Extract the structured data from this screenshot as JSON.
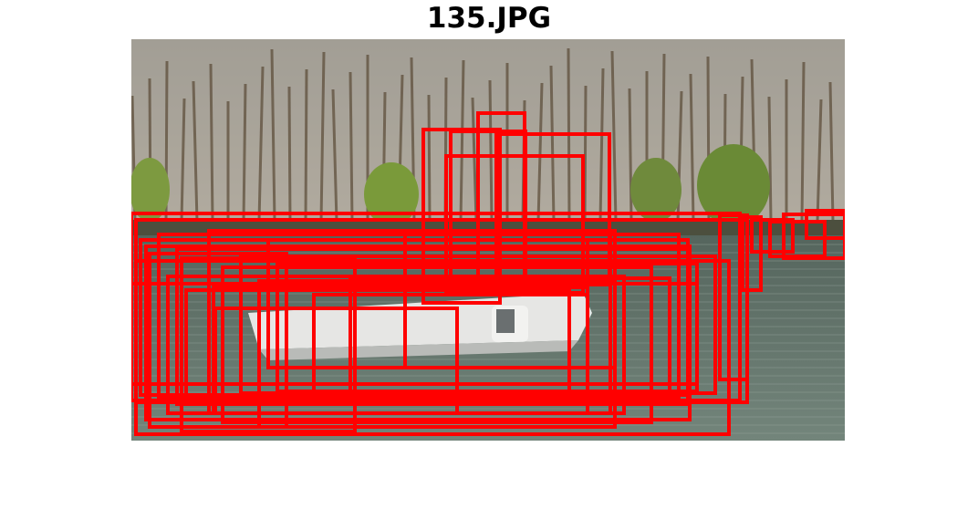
{
  "figure": {
    "title": "135.JPG"
  },
  "image": {
    "scene": "lake-with-white-boat-and-trees",
    "colors": {
      "sky": "#c9ccd0",
      "trees_bare": "#8a7e66",
      "trees_green": "#6f8a3c",
      "water": "#6a7b72",
      "boat": "#e8e8e6",
      "box_stroke": "#ff0000"
    }
  },
  "detections": {
    "count_label": "",
    "stroke_color": "#ff0000"
  }
}
